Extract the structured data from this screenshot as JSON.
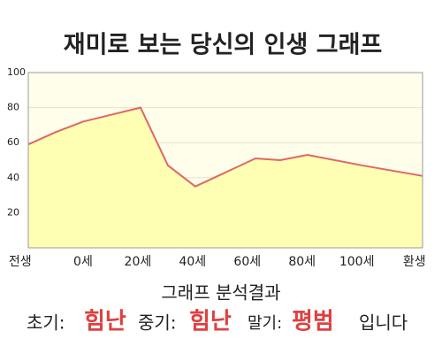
{
  "chart_data": {
    "type": "area",
    "title": "재미로 보는 당신의 인생 그래프",
    "x": [
      -20,
      -10,
      0,
      21,
      31,
      41,
      63,
      72,
      82,
      102,
      124
    ],
    "values": [
      59,
      66,
      72,
      80,
      47,
      35,
      51,
      50,
      53,
      47,
      41
    ],
    "color": "#e06666",
    "fill": "#ffffb4",
    "xlim": [
      -20,
      124
    ],
    "xticks": [
      {
        "value": -23,
        "label": "전생"
      },
      {
        "value": 0,
        "label": "0세"
      },
      {
        "value": 20,
        "label": "20세"
      },
      {
        "value": 40,
        "label": "40세"
      },
      {
        "value": 60,
        "label": "60세"
      },
      {
        "value": 80,
        "label": "80세"
      },
      {
        "value": 100,
        "label": "100세"
      },
      {
        "value": 121,
        "label": "환생"
      }
    ],
    "ylim": [
      0,
      100
    ],
    "yticks": [
      20,
      40,
      60,
      80,
      100
    ],
    "grid": true,
    "result": {
      "heading": "그래프 분석결과",
      "items": [
        {
          "label": "초기:",
          "value": "힘난"
        },
        {
          "label": "중기:",
          "value": "힘난"
        },
        {
          "label": "말기:",
          "value": "평범"
        }
      ],
      "suffix": "입니다"
    }
  }
}
